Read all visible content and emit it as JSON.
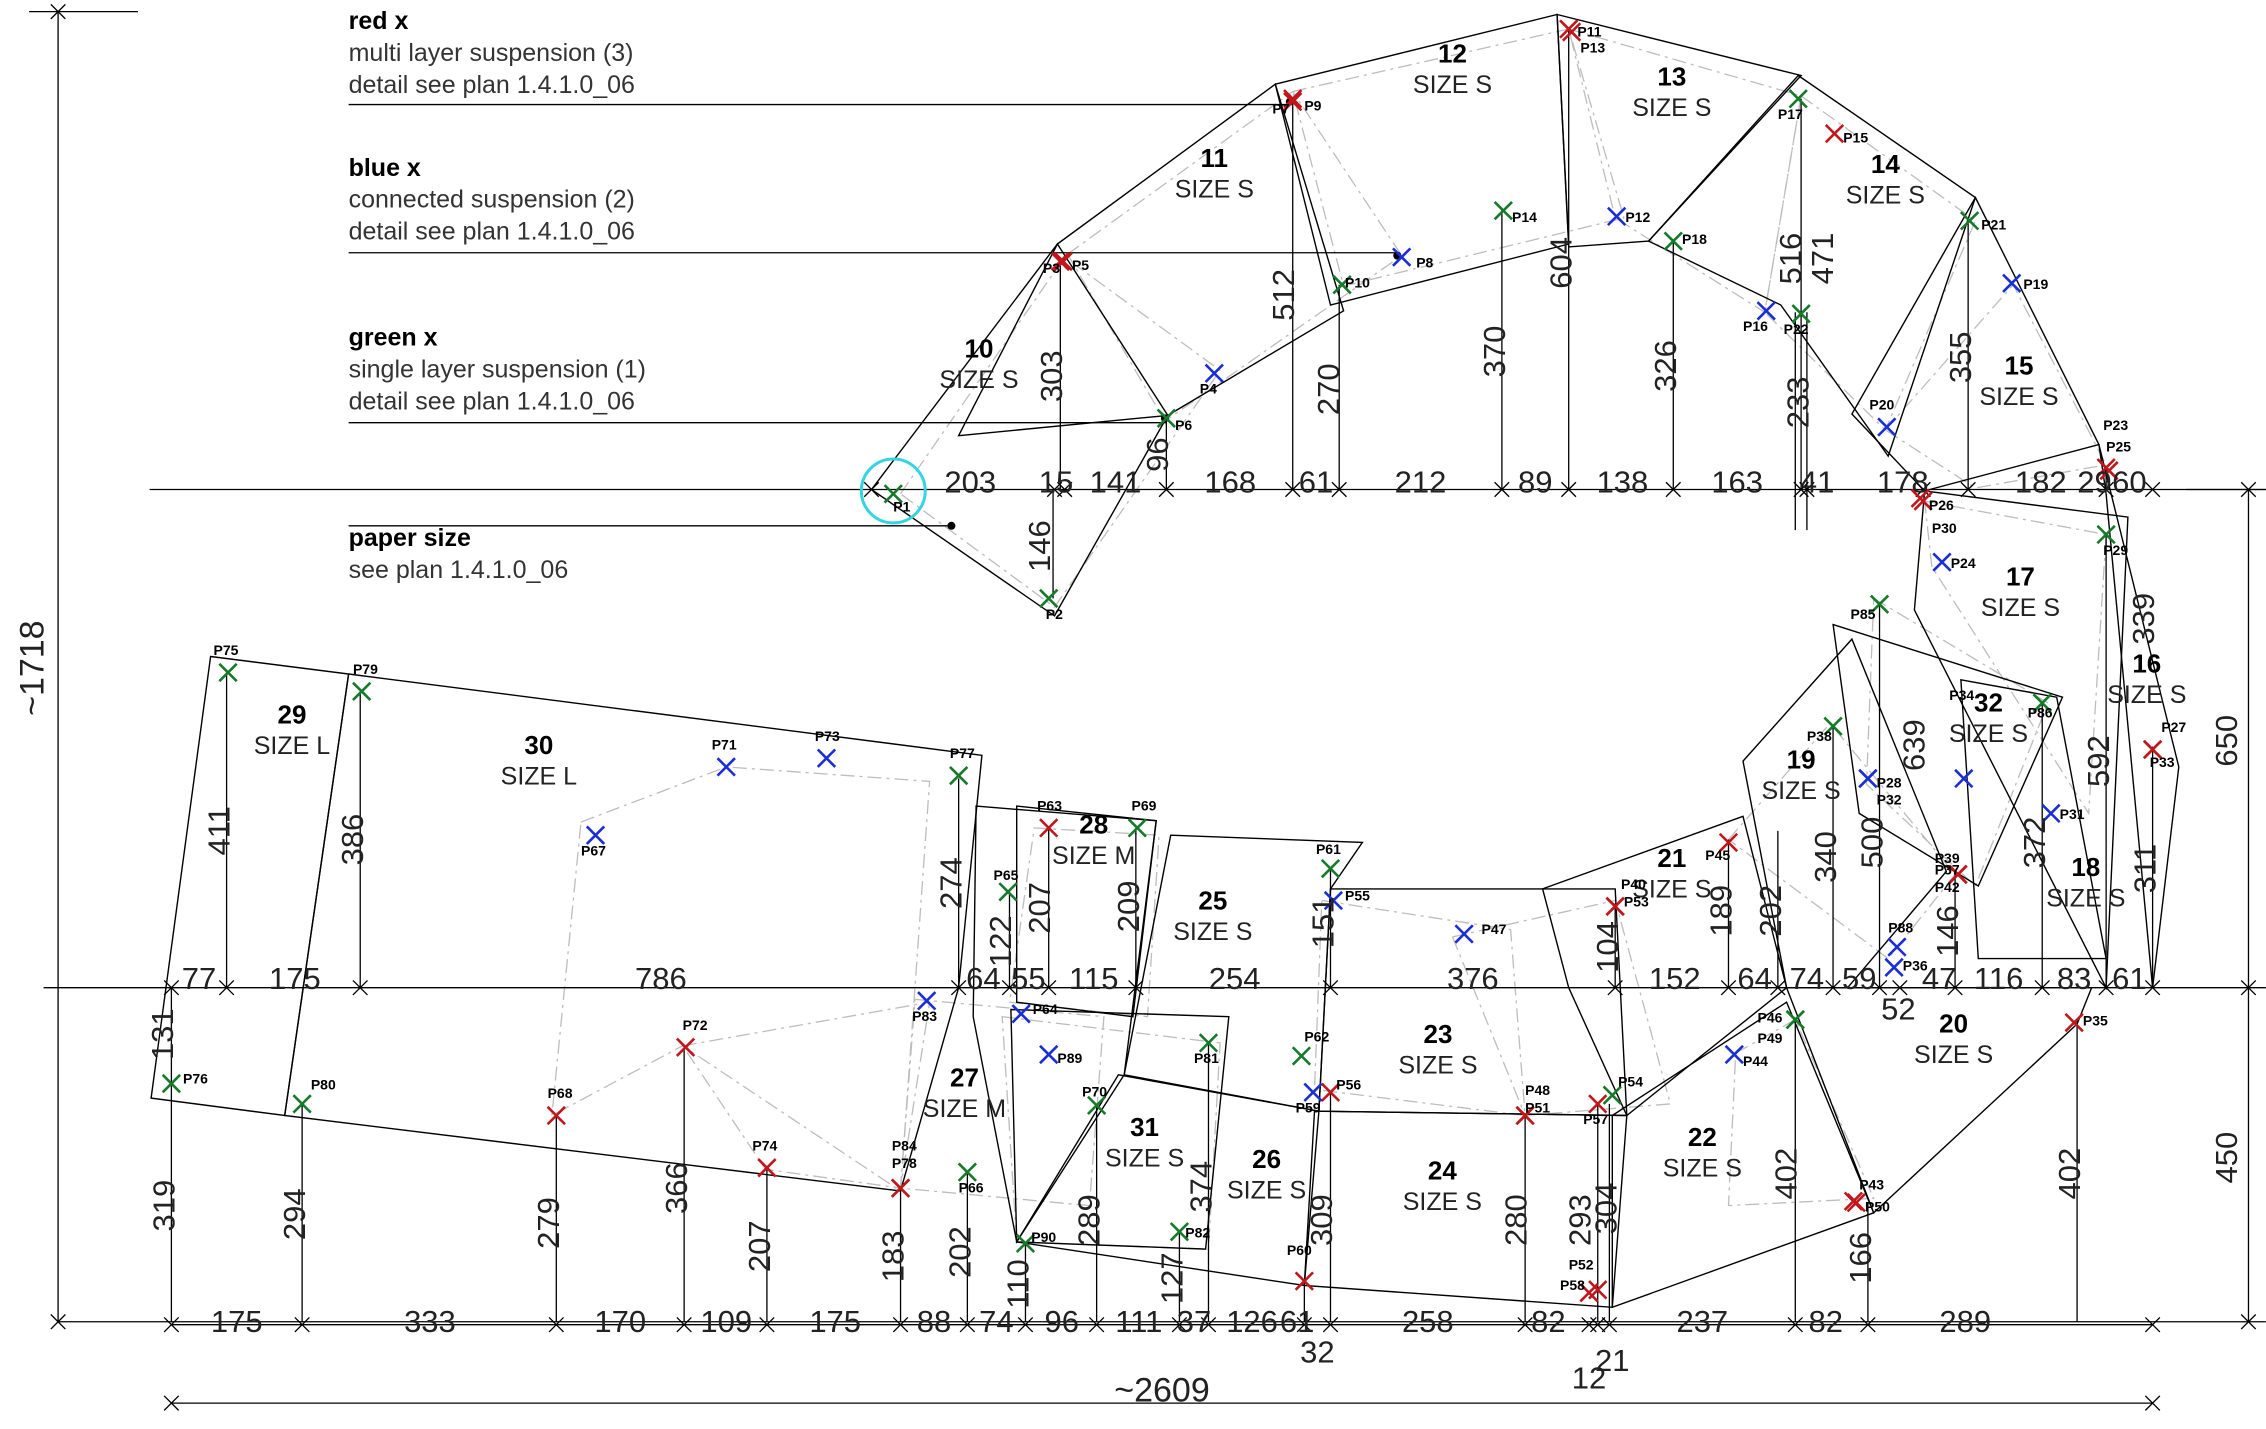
{
  "legend": {
    "red": {
      "title": "red x",
      "line1": "multi layer suspension (3)",
      "line2": "detail see plan 1.4.1.0_06"
    },
    "blue": {
      "title": "blue x",
      "line1": "connected suspension (2)",
      "line2": "detail see plan 1.4.1.0_06"
    },
    "green": {
      "title": "green x",
      "line1": "single layer suspension (1)",
      "line2": "detail see plan 1.4.1.0_06"
    },
    "paper": {
      "title": "paper size",
      "line1": "see plan 1.4.1.0_06"
    }
  },
  "colors": {
    "red": "#c0171c",
    "blue": "#1a2dd6",
    "green": "#157a2a",
    "line": "#000000",
    "dash": "#bdbdbd",
    "highlight": "#35d4e3"
  },
  "overall": {
    "width_label": "~2609",
    "height_label": "~1718"
  },
  "panels": [
    {
      "num": "10",
      "size": "SIZE S"
    },
    {
      "num": "11",
      "size": "SIZE S"
    },
    {
      "num": "12",
      "size": "SIZE S"
    },
    {
      "num": "13",
      "size": "SIZE S"
    },
    {
      "num": "14",
      "size": "SIZE S"
    },
    {
      "num": "15",
      "size": "SIZE S"
    },
    {
      "num": "16",
      "size": "SIZE S"
    },
    {
      "num": "17",
      "size": "SIZE S"
    },
    {
      "num": "18",
      "size": "SIZE S"
    },
    {
      "num": "19",
      "size": "SIZE S"
    },
    {
      "num": "20",
      "size": "SIZE S"
    },
    {
      "num": "21",
      "size": "SIZE S"
    },
    {
      "num": "22",
      "size": "SIZE S"
    },
    {
      "num": "23",
      "size": "SIZE S"
    },
    {
      "num": "24",
      "size": "SIZE S"
    },
    {
      "num": "25",
      "size": "SIZE S"
    },
    {
      "num": "26",
      "size": "SIZE S"
    },
    {
      "num": "27",
      "size": "SIZE M"
    },
    {
      "num": "28",
      "size": "SIZE M"
    },
    {
      "num": "29",
      "size": "SIZE L"
    },
    {
      "num": "30",
      "size": "SIZE L"
    },
    {
      "num": "31",
      "size": "SIZE S"
    },
    {
      "num": "32",
      "size": "SIZE S"
    }
  ],
  "points": [
    {
      "id": "P1",
      "color": "green"
    },
    {
      "id": "P2",
      "color": "green"
    },
    {
      "id": "P3",
      "color": "red"
    },
    {
      "id": "P4",
      "color": "blue"
    },
    {
      "id": "P5",
      "color": "red"
    },
    {
      "id": "P6",
      "color": "green"
    },
    {
      "id": "P7",
      "color": "red"
    },
    {
      "id": "P8",
      "color": "blue"
    },
    {
      "id": "P9",
      "color": "red"
    },
    {
      "id": "P10",
      "color": "green"
    },
    {
      "id": "P11",
      "color": "red"
    },
    {
      "id": "P12",
      "color": "blue"
    },
    {
      "id": "P13",
      "color": "red"
    },
    {
      "id": "P14",
      "color": "green"
    },
    {
      "id": "P15",
      "color": "red"
    },
    {
      "id": "P16",
      "color": "blue"
    },
    {
      "id": "P17",
      "color": "green"
    },
    {
      "id": "P18",
      "color": "green"
    },
    {
      "id": "P19",
      "color": "blue"
    },
    {
      "id": "P20",
      "color": "blue"
    },
    {
      "id": "P21",
      "color": "green"
    },
    {
      "id": "P22",
      "color": "green"
    },
    {
      "id": "P23",
      "color": "red"
    },
    {
      "id": "P24",
      "color": "blue"
    },
    {
      "id": "P25",
      "color": "red"
    },
    {
      "id": "P26",
      "color": "red"
    },
    {
      "id": "P27",
      "color": "red"
    },
    {
      "id": "P28",
      "color": "blue"
    },
    {
      "id": "P29",
      "color": "green"
    },
    {
      "id": "P30",
      "color": "red"
    },
    {
      "id": "P31",
      "color": "blue"
    },
    {
      "id": "P32",
      "color": "blue"
    },
    {
      "id": "P33",
      "color": "red"
    },
    {
      "id": "P34",
      "color": "blue"
    },
    {
      "id": "P35",
      "color": "red"
    },
    {
      "id": "P36",
      "color": "blue"
    },
    {
      "id": "P37",
      "color": "red"
    },
    {
      "id": "P38",
      "color": "green"
    },
    {
      "id": "P39",
      "color": "red"
    },
    {
      "id": "P40",
      "color": "red"
    },
    {
      "id": "P42",
      "color": "red"
    },
    {
      "id": "P43",
      "color": "red"
    },
    {
      "id": "P44",
      "color": "blue"
    },
    {
      "id": "P45",
      "color": "red"
    },
    {
      "id": "P46",
      "color": "green"
    },
    {
      "id": "P47",
      "color": "blue"
    },
    {
      "id": "P48",
      "color": "red"
    },
    {
      "id": "P49",
      "color": "green"
    },
    {
      "id": "P50",
      "color": "red"
    },
    {
      "id": "P51",
      "color": "red"
    },
    {
      "id": "P52",
      "color": "red"
    },
    {
      "id": "P53",
      "color": "red"
    },
    {
      "id": "P54",
      "color": "green"
    },
    {
      "id": "P55",
      "color": "blue"
    },
    {
      "id": "P56",
      "color": "red"
    },
    {
      "id": "P57",
      "color": "red"
    },
    {
      "id": "P58",
      "color": "red"
    },
    {
      "id": "P59",
      "color": "blue"
    },
    {
      "id": "P60",
      "color": "red"
    },
    {
      "id": "P61",
      "color": "green"
    },
    {
      "id": "P62",
      "color": "green"
    },
    {
      "id": "P63",
      "color": "red"
    },
    {
      "id": "P64",
      "color": "blue"
    },
    {
      "id": "P65",
      "color": "green"
    },
    {
      "id": "P66",
      "color": "green"
    },
    {
      "id": "P67",
      "color": "blue"
    },
    {
      "id": "P68",
      "color": "red"
    },
    {
      "id": "P69",
      "color": "green"
    },
    {
      "id": "P70",
      "color": "green"
    },
    {
      "id": "P71",
      "color": "blue"
    },
    {
      "id": "P72",
      "color": "red"
    },
    {
      "id": "P73",
      "color": "blue"
    },
    {
      "id": "P74",
      "color": "red"
    },
    {
      "id": "P75",
      "color": "green"
    },
    {
      "id": "P76",
      "color": "green"
    },
    {
      "id": "P77",
      "color": "green"
    },
    {
      "id": "P78",
      "color": "red"
    },
    {
      "id": "P79",
      "color": "green"
    },
    {
      "id": "P80",
      "color": "green"
    },
    {
      "id": "P81",
      "color": "green"
    },
    {
      "id": "P82",
      "color": "green"
    },
    {
      "id": "P83",
      "color": "blue"
    },
    {
      "id": "P84",
      "color": "red"
    },
    {
      "id": "P85",
      "color": "green"
    },
    {
      "id": "P86",
      "color": "green"
    },
    {
      "id": "P88",
      "color": "blue"
    },
    {
      "id": "P89",
      "color": "blue"
    },
    {
      "id": "P90",
      "color": "green"
    }
  ],
  "dims": {
    "row1": [
      "203",
      "15",
      "141",
      "168",
      "61",
      "212",
      "89",
      "138",
      "163",
      "41",
      "178",
      "182",
      "29",
      "60"
    ],
    "row2": [
      "77",
      "175",
      "786",
      "64",
      "55",
      "115",
      "254",
      "376",
      "152",
      "64",
      "74",
      "59",
      "47",
      "116",
      "83",
      "61",
      "52"
    ],
    "row3": [
      "175",
      "333",
      "170",
      "109",
      "175",
      "88",
      "74",
      "96",
      "111",
      "37",
      "126",
      "61",
      "258",
      "82",
      "237",
      "82",
      "289",
      "32",
      "12",
      "21"
    ],
    "vert": [
      "303",
      "146",
      "96",
      "512",
      "270",
      "370",
      "604",
      "326",
      "516",
      "471",
      "233",
      "355",
      "411",
      "386",
      "274",
      "122",
      "207",
      "209",
      "151",
      "104",
      "189",
      "202",
      "340",
      "500",
      "639",
      "146",
      "372",
      "592",
      "311",
      "339",
      "131",
      "319",
      "294",
      "279",
      "366",
      "207",
      "183",
      "202",
      "110",
      "289",
      "127",
      "374",
      "309",
      "280",
      "293",
      "304",
      "402",
      "166",
      "402"
    ],
    "right": [
      "650",
      "450"
    ]
  }
}
